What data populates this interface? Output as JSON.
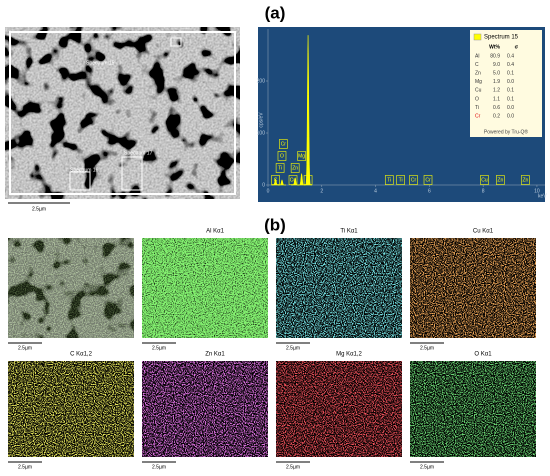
{
  "panel_a": {
    "label": "(a)",
    "sem": {
      "spectrum_labels": [
        "Spectrum 15",
        "Spectrum 16",
        "Spectrum 17"
      ],
      "scale": "2.5µm"
    },
    "spectrum": {
      "y_label": "cps/eV",
      "x_label": "keV",
      "xlim": [
        0,
        10.3
      ],
      "xticks": [
        0,
        2,
        4,
        6,
        8,
        10
      ],
      "ylim": [
        0,
        300
      ],
      "yticks": [
        0,
        100,
        200
      ],
      "peaks": [
        {
          "element": "C",
          "energy": 0.28,
          "height": 12
        },
        {
          "element": "O",
          "energy": 0.52,
          "height": 10
        },
        {
          "element": "Zn",
          "energy": 1.01,
          "height": 14
        },
        {
          "element": "Mg",
          "energy": 1.25,
          "height": 22
        },
        {
          "element": "Al",
          "energy": 1.49,
          "height": 288
        }
      ],
      "element_labels": [
        {
          "text": "C",
          "energy": 0.28
        },
        {
          "text": "Ti",
          "energy": 0.45
        },
        {
          "text": "O",
          "energy": 0.52
        },
        {
          "text": "Cr",
          "energy": 0.57
        },
        {
          "text": "Cu",
          "energy": 0.93
        },
        {
          "text": "Zn",
          "energy": 1.01
        },
        {
          "text": "Mg",
          "energy": 1.25
        },
        {
          "text": "Al",
          "energy": 1.49
        },
        {
          "text": "Ti",
          "energy": 4.51
        },
        {
          "text": "Ti",
          "energy": 4.93
        },
        {
          "text": "Cr",
          "energy": 5.41
        },
        {
          "text": "Cr",
          "energy": 5.95
        },
        {
          "text": "Cu",
          "energy": 8.05
        },
        {
          "text": "Zn",
          "energy": 8.64
        },
        {
          "text": "Zn",
          "energy": 9.57
        }
      ],
      "legend": "Spectrum 15",
      "table": {
        "header": [
          "Wt%",
          "σ"
        ],
        "rows": [
          [
            "Al",
            "80.9",
            "0.4"
          ],
          [
            "C",
            "9.0",
            "0.4"
          ],
          [
            "Zn",
            "5.0",
            "0.1"
          ],
          [
            "Mg",
            "1.9",
            "0.0"
          ],
          [
            "Cu",
            "1.2",
            "0.1"
          ],
          [
            "O",
            "1.1",
            "0.1"
          ],
          [
            "Ti",
            "0.6",
            "0.0"
          ],
          [
            "Cr",
            "0.2",
            "0.0"
          ]
        ]
      },
      "footer": "Powered by Tru-Q®"
    }
  },
  "panel_b": {
    "label": "(b)",
    "scale": "2.5µm",
    "maps": [
      {
        "label": null,
        "color": "#4a7a2a"
      },
      {
        "label": "Al Kα1",
        "color": "#3ce62a"
      },
      {
        "label": "Ti Kα1",
        "color": "#2fc8cc"
      },
      {
        "label": "Cu Kα1",
        "color": "#e4661a"
      },
      {
        "label": "C Kα1,2",
        "color": "#d0d01c"
      },
      {
        "label": "Zn Kα1",
        "color": "#c42ccc"
      },
      {
        "label": "Mg Kα1,2",
        "color": "#e8161c"
      },
      {
        "label": "O Kα1",
        "color": "#26b42e"
      }
    ]
  }
}
